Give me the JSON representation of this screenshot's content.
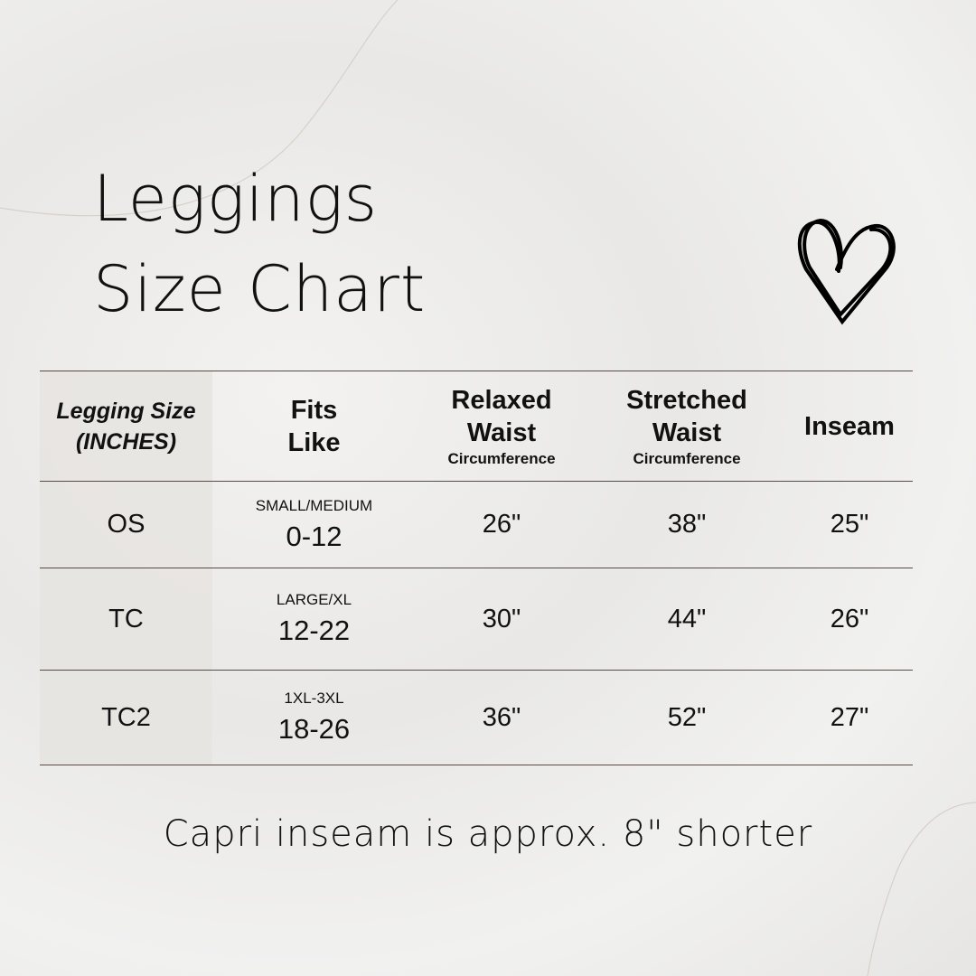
{
  "title": {
    "line1": "Leggings",
    "line2": "Size Chart"
  },
  "icons": {
    "decoration": "heart-outline-icon"
  },
  "table": {
    "headers": [
      {
        "lines": [
          "Legging Size",
          "(INCHES)"
        ],
        "sub": ""
      },
      {
        "lines": [
          "Fits",
          "Like"
        ],
        "sub": ""
      },
      {
        "lines": [
          "Relaxed",
          "Waist"
        ],
        "sub": "Circumference"
      },
      {
        "lines": [
          "Stretched",
          "Waist"
        ],
        "sub": "Circumference"
      },
      {
        "lines": [
          "Inseam"
        ],
        "sub": ""
      }
    ],
    "rows": [
      {
        "size": "OS",
        "fits_label": "SMALL/MEDIUM",
        "fits_range": "0-12",
        "relaxed": "26\"",
        "stretched": "38\"",
        "inseam": "25\""
      },
      {
        "size": "TC",
        "fits_label": "LARGE/XL",
        "fits_range": "12-22",
        "relaxed": "30\"",
        "stretched": "44\"",
        "inseam": "26\""
      },
      {
        "size": "TC2",
        "fits_label": "1XL-3XL",
        "fits_range": "18-26",
        "relaxed": "36\"",
        "stretched": "52\"",
        "inseam": "27\""
      }
    ]
  },
  "footer": "Capri inseam is approx. 8\" shorter"
}
